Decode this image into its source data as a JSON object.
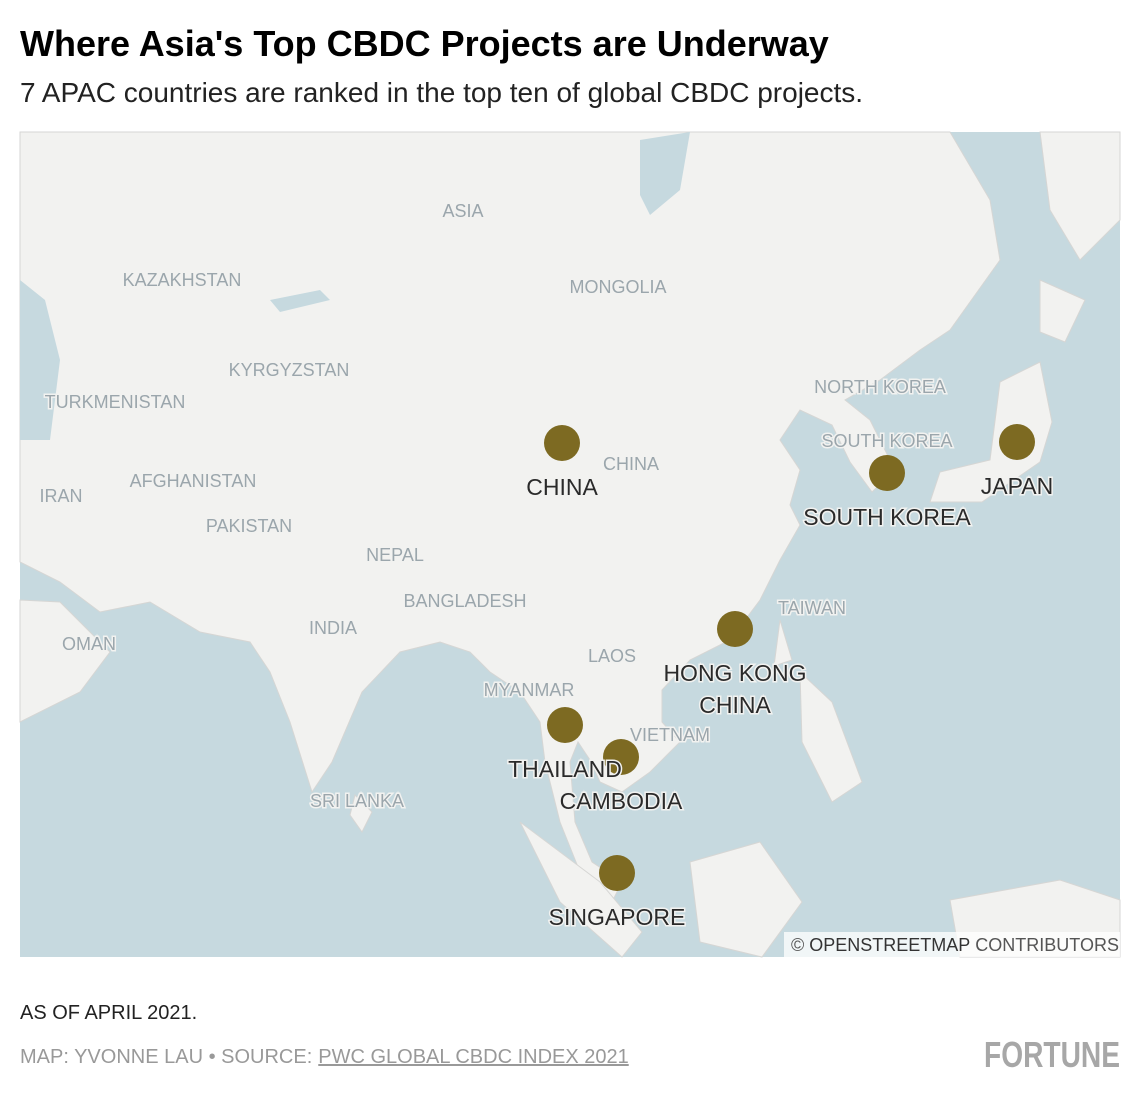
{
  "header": {
    "title": "Where Asia's Top CBDC Projects are Underway",
    "subtitle": "7 APAC countries are ranked in the top ten of global CBDC projects."
  },
  "map": {
    "region_labels": [
      "ASIA",
      "KAZAKHSTAN",
      "MONGOLIA",
      "KYRGYZSTAN",
      "TURKMENISTAN",
      "NORTH KOREA",
      "SOUTH KOREA",
      "CHINA",
      "IRAN",
      "AFGHANISTAN",
      "PAKISTAN",
      "NEPAL",
      "BANGLADESH",
      "TAIWAN",
      "INDIA",
      "OMAN",
      "LAOS",
      "MYANMAR",
      "VIETNAM",
      "SRI LANKA"
    ],
    "markers": [
      {
        "label": "CHINA"
      },
      {
        "label": "SOUTH KOREA"
      },
      {
        "label": "JAPAN"
      },
      {
        "label": [
          "HONG KONG",
          "CHINA"
        ]
      },
      {
        "label": "THAILAND"
      },
      {
        "label": "CAMBODIA"
      },
      {
        "label": "SINGAPORE"
      }
    ],
    "attribution": {
      "symbol": "©",
      "link": "OPENSTREETMAP",
      "rest": "CONTRIBUTORS"
    }
  },
  "footer": {
    "note": "AS OF APRIL 2021.",
    "credit": "MAP: YVONNE LAU • SOURCE:",
    "source_link": "PWC GLOBAL CBDC INDEX 2021",
    "logo": "FORTUNE"
  }
}
